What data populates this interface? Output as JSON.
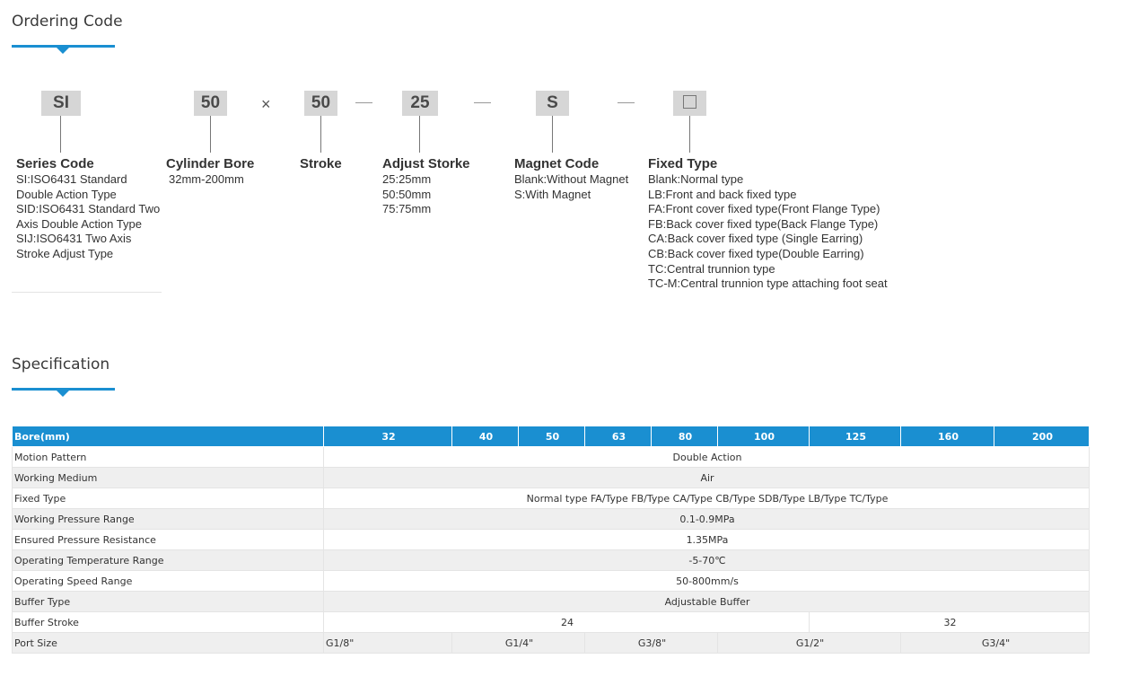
{
  "ordering": {
    "title": "Ordering Code",
    "codes": {
      "series": "SI",
      "bore": "50",
      "times": "×",
      "stroke": "50",
      "adjust": "25",
      "magnet": "S"
    },
    "groups": {
      "series": {
        "title": "Series Code",
        "lines": [
          "SI:ISO6431 Standard",
          "Double Action Type",
          "SID:ISO6431 Standard Two",
          "Axis Double Action Type",
          "SIJ:ISO6431 Two Axis",
          "Stroke Adjust Type"
        ]
      },
      "bore": {
        "title": "Cylinder Bore",
        "lines": [
          "32mm-200mm"
        ]
      },
      "stroke": {
        "title": "Stroke",
        "lines": []
      },
      "adjust": {
        "title": "Adjust Storke",
        "lines": [
          "25:25mm",
          "50:50mm",
          "75:75mm"
        ]
      },
      "magnet": {
        "title": "Magnet Code",
        "lines": [
          "Blank:Without Magnet",
          "S:With Magnet"
        ]
      },
      "fixed": {
        "title": "Fixed Type",
        "lines": [
          "Blank:Normal type",
          "LB:Front and back fixed type",
          "FA:Front cover fixed type(Front Flange Type)",
          "FB:Back cover fixed type(Back Flange Type)",
          "CA:Back cover fixed type (Single Earring)",
          "CB:Back cover fixed type(Double Earring)",
          "TC:Central trunnion type",
          "TC-M:Central trunnion type attaching foot seat"
        ]
      }
    }
  },
  "spec": {
    "title": "Specification",
    "header": [
      "Bore(mm)",
      "32",
      "40",
      "50",
      "63",
      "80",
      "100",
      "125",
      "160",
      "200"
    ],
    "rows": [
      {
        "label": "Motion Pattern",
        "value": "Double Action"
      },
      {
        "label": "Working Medium",
        "value": "Air"
      },
      {
        "label": "Fixed Type",
        "value": "Normal type FA/Type FB/Type CA/Type CB/Type SDB/Type LB/Type TC/Type"
      },
      {
        "label": "Working Pressure Range",
        "value": "0.1-0.9MPa"
      },
      {
        "label": "Ensured Pressure Resistance",
        "value": "1.35MPa"
      },
      {
        "label": "Operating Temperature Range",
        "value": "-5-70℃"
      },
      {
        "label": "Operating Speed Range",
        "value": "50-800mm/s"
      },
      {
        "label": "Buffer Type",
        "value": "Adjustable Buffer"
      }
    ],
    "buffer_stroke": {
      "label": "Buffer Stroke",
      "small": "24",
      "large": "32"
    },
    "port_size": {
      "label": "Port Size",
      "values": [
        "G1/8\"",
        "G1/4\"",
        "G3/8\"",
        "G1/2\"",
        "G3/4\""
      ]
    }
  },
  "colors": {
    "accent": "#1a8fd1",
    "code_box": "#d6d6d6",
    "row_alt": "#efefef"
  }
}
